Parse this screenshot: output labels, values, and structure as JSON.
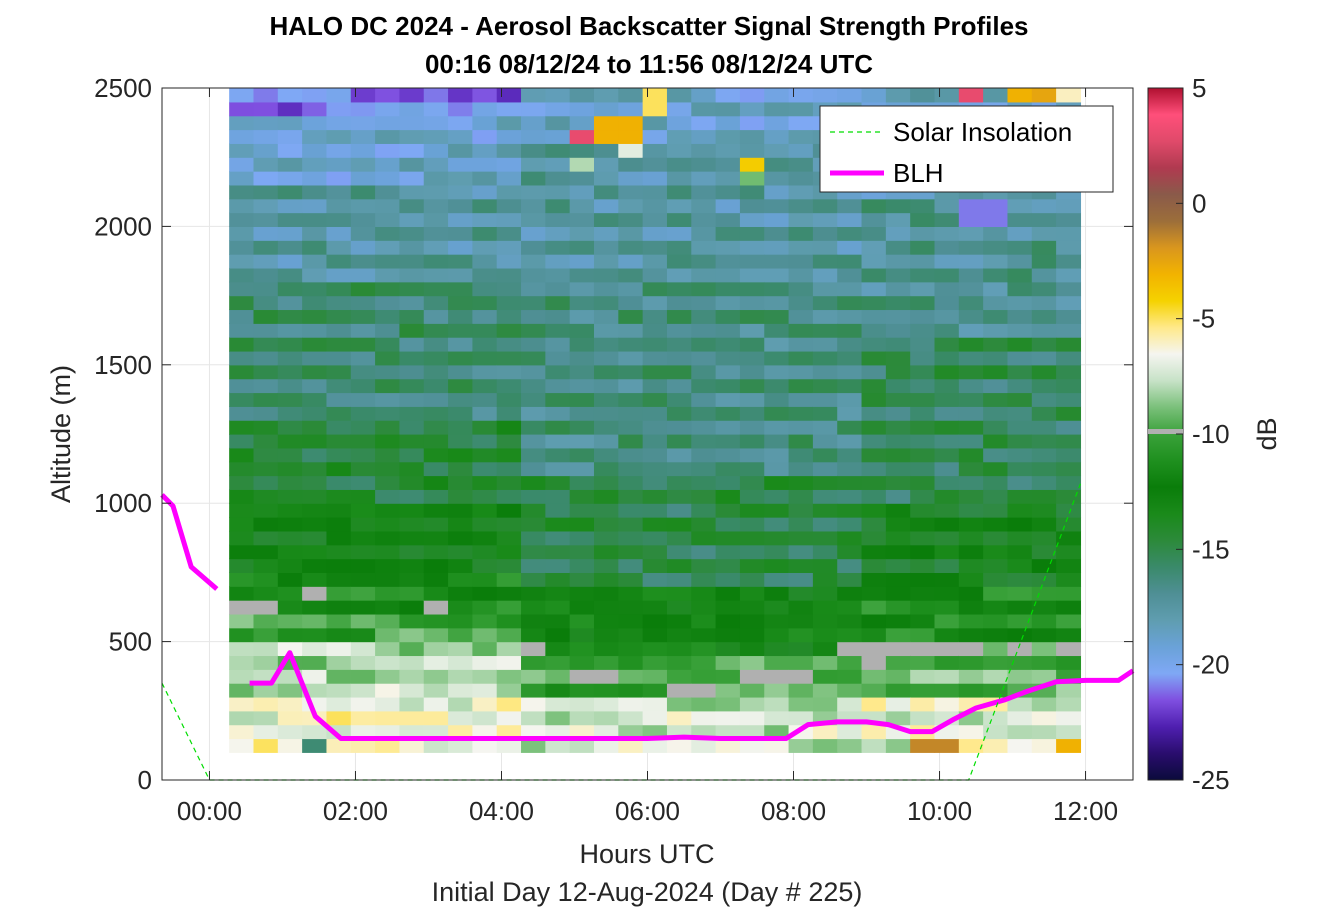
{
  "colors": {
    "blh": "#ff00ff",
    "solar": "#00dd00",
    "missing": "#b0b0b0",
    "colormap": [
      "#0b0b3b",
      "#2a0d6e",
      "#4f1fb0",
      "#7f4fe0",
      "#7fa8f5",
      "#6aa2d8",
      "#5f9db0",
      "#4f8f95",
      "#3a8a6a",
      "#2c8a3a",
      "#1a8a1a",
      "#0a7d0a",
      "#1f901f",
      "#3aa13a",
      "#7ac07a",
      "#c7e2c7",
      "#f5f5f0",
      "#ffe98a",
      "#f5d200",
      "#f2b300",
      "#d9961e",
      "#9c6e3a",
      "#8a5a4a",
      "#b03a50",
      "#e04a6a",
      "#ff4f7a",
      "#b01030"
    ]
  },
  "chart_data": {
    "type": "heatmap",
    "title": "HALO DC 2024 - Aerosol Backscatter Signal Strength Profiles",
    "subtitle": "00:16 08/12/24 to 11:56 08/12/24  UTC",
    "xlabel": "Hours UTC",
    "xlabel2": "Initial Day 12-Aug-2024 (Day # 225)",
    "ylabel": "Altitude (m)",
    "xlim": [
      -0.65,
      12.65
    ],
    "ylim": [
      0,
      2500
    ],
    "grid": true,
    "x_ticks": [
      0,
      2,
      4,
      6,
      8,
      10,
      12
    ],
    "x_tick_labels": [
      "00:00",
      "02:00",
      "04:00",
      "06:00",
      "08:00",
      "10:00",
      "12:00"
    ],
    "y_ticks": [
      0,
      500,
      1000,
      1500,
      2000,
      2500
    ],
    "y_tick_labels": [
      "0",
      "500",
      "1000",
      "1500",
      "2000",
      "2500"
    ],
    "colorbar": {
      "label": "dB",
      "range": [
        -25,
        5
      ],
      "ticks": [
        5,
        0,
        -5,
        -10,
        -15,
        -20,
        -25
      ],
      "tick_labels": [
        "5",
        "0",
        "-5",
        "-10",
        "-15",
        "-20",
        "-25"
      ]
    },
    "legend": {
      "placement": "top-right",
      "entries": [
        "Solar Insolation",
        "BLH"
      ]
    },
    "heatmap": {
      "x_start": 0.27,
      "x_end": 11.93,
      "time_bins": 35,
      "alt_bottom": 100,
      "alt_top": 2500,
      "alt_bins": 48,
      "regimes": [
        {
          "x_from": 0.27,
          "x_to": 4.27,
          "layers": [
            {
              "alt_to": 300,
              "dB": -6.5
            },
            {
              "alt_to": 500,
              "dB": -8.0
            },
            {
              "alt_to": 600,
              "dB": -10.0
            },
            {
              "alt_to": 750,
              "dB": -11.5
            },
            {
              "alt_to": 1000,
              "dB": -13.0
            },
            {
              "alt_to": 1300,
              "dB": -14.5
            },
            {
              "alt_to": 1800,
              "dB": -16.0
            },
            {
              "alt_to": 2150,
              "dB": -17.5
            },
            {
              "alt_to": 2400,
              "dB": -19.0
            },
            {
              "alt_to": 2500,
              "dB": -21.0
            }
          ]
        },
        {
          "x_from": 4.27,
          "x_to": 9.0,
          "layers": [
            {
              "alt_to": 300,
              "dB": -7.5
            },
            {
              "alt_to": 450,
              "dB": -10.0
            },
            {
              "alt_to": 700,
              "dB": -12.5
            },
            {
              "alt_to": 1100,
              "dB": -15.0
            },
            {
              "alt_to": 1800,
              "dB": -16.5
            },
            {
              "alt_to": 2300,
              "dB": -17.5
            },
            {
              "alt_to": 2500,
              "dB": -19.0
            }
          ]
        },
        {
          "x_from": 9.0,
          "x_to": 11.93,
          "layers": [
            {
              "alt_to": 300,
              "dB": -7.0
            },
            {
              "alt_to": 500,
              "dB": -9.5
            },
            {
              "alt_to": 700,
              "dB": -11.5
            },
            {
              "alt_to": 1000,
              "dB": -13.5
            },
            {
              "alt_to": 1600,
              "dB": -15.5
            },
            {
              "alt_to": 2100,
              "dB": -17.0
            },
            {
              "alt_to": 2500,
              "dB": -18.5
            }
          ]
        }
      ],
      "missing_blocks": [
        {
          "x": [
            0.27,
            0.93
          ],
          "alt": [
            600,
            650
          ]
        },
        {
          "x": [
            1.27,
            1.6
          ],
          "alt": [
            650,
            700
          ]
        },
        {
          "x": [
            2.93,
            3.27
          ],
          "alt": [
            600,
            650
          ]
        },
        {
          "x": [
            4.27,
            4.6
          ],
          "alt": [
            450,
            500
          ]
        },
        {
          "x": [
            4.93,
            5.6
          ],
          "alt": [
            350,
            400
          ]
        },
        {
          "x": [
            6.27,
            6.93
          ],
          "alt": [
            300,
            350
          ]
        },
        {
          "x": [
            7.27,
            8.27
          ],
          "alt": [
            350,
            400
          ]
        },
        {
          "x": [
            8.6,
            10.6
          ],
          "alt": [
            450,
            500
          ]
        },
        {
          "x": [
            8.93,
            9.27
          ],
          "alt": [
            400,
            450
          ]
        },
        {
          "x": [
            10.93,
            11.27
          ],
          "alt": [
            450,
            500
          ]
        },
        {
          "x": [
            11.6,
            11.93
          ],
          "alt": [
            450,
            500
          ]
        }
      ],
      "upper_patches": [
        {
          "x": [
            4.93,
            5.27
          ],
          "alt": [
            2300,
            2350
          ],
          "dB": 3.0
        },
        {
          "x": [
            4.93,
            5.27
          ],
          "alt": [
            2200,
            2250
          ],
          "dB": -8.0
        },
        {
          "x": [
            5.27,
            5.93
          ],
          "alt": [
            2300,
            2400
          ],
          "dB": -3.0
        },
        {
          "x": [
            5.6,
            5.93
          ],
          "alt": [
            2250,
            2300
          ],
          "dB": -7.0
        },
        {
          "x": [
            5.93,
            6.27
          ],
          "alt": [
            2400,
            2500
          ],
          "dB": -5.0
        },
        {
          "x": [
            7.27,
            7.6
          ],
          "alt": [
            2200,
            2250
          ],
          "dB": -4.0
        },
        {
          "x": [
            7.27,
            7.6
          ],
          "alt": [
            2150,
            2200
          ],
          "dB": -9.0
        },
        {
          "x": [
            10.27,
            10.6
          ],
          "alt": [
            2450,
            2500
          ],
          "dB": 3.0
        },
        {
          "x": [
            10.93,
            11.27
          ],
          "alt": [
            2450,
            2500
          ],
          "dB": -3.0
        },
        {
          "x": [
            11.27,
            11.6
          ],
          "alt": [
            2450,
            2500
          ],
          "dB": -2.5
        },
        {
          "x": [
            11.6,
            11.93
          ],
          "alt": [
            2450,
            2500
          ],
          "dB": -6.0
        },
        {
          "x": [
            9.6,
            10.27
          ],
          "alt": [
            100,
            150
          ],
          "dB": -1.5
        },
        {
          "x": [
            11.6,
            11.93
          ],
          "alt": [
            100,
            150
          ],
          "dB": -3.0
        },
        {
          "x": [
            1.27,
            1.6
          ],
          "alt": [
            100,
            150
          ],
          "dB": -16.0
        },
        {
          "x": [
            10.27,
            10.93
          ],
          "alt": [
            2000,
            2100
          ],
          "dB": -21.0
        }
      ]
    },
    "series": [
      {
        "name": "BLH",
        "segments": [
          [
            [
              -0.65,
              1030
            ],
            [
              -0.5,
              990
            ],
            [
              -0.25,
              770
            ],
            [
              0.1,
              690
            ]
          ],
          [
            [
              0.55,
              350
            ],
            [
              0.85,
              350
            ],
            [
              1.1,
              460
            ],
            [
              1.45,
              230
            ],
            [
              1.8,
              150
            ],
            [
              2.5,
              150
            ],
            [
              3.5,
              150
            ],
            [
              4.5,
              150
            ],
            [
              5.5,
              150
            ],
            [
              6.0,
              150
            ],
            [
              6.5,
              155
            ],
            [
              7.0,
              150
            ],
            [
              7.5,
              150
            ],
            [
              7.9,
              150
            ],
            [
              8.2,
              200
            ],
            [
              8.6,
              210
            ],
            [
              9.0,
              210
            ],
            [
              9.3,
              200
            ],
            [
              9.6,
              175
            ],
            [
              9.9,
              175
            ],
            [
              10.2,
              220
            ],
            [
              10.5,
              260
            ],
            [
              10.9,
              290
            ],
            [
              11.2,
              320
            ],
            [
              11.6,
              355
            ],
            [
              12.0,
              360
            ],
            [
              12.45,
              360
            ],
            [
              12.65,
              395
            ]
          ]
        ]
      },
      {
        "name": "Solar Insolation",
        "segments": [
          [
            [
              -0.65,
              350
            ],
            [
              0.0,
              0
            ],
            [
              10.4,
              0
            ],
            [
              11.93,
              1070
            ]
          ]
        ]
      }
    ]
  }
}
